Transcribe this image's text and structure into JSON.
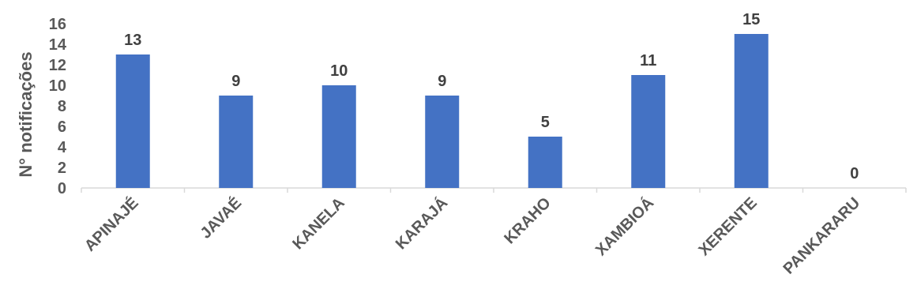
{
  "chart_data": {
    "type": "bar",
    "title": "",
    "xlabel": "",
    "ylabel": "N° notificações",
    "categories": [
      "APINAJÉ",
      "JAVAÉ",
      "KANELA",
      "KARAJÁ",
      "KRAHO",
      "XAMBIOÁ",
      "XERENTE",
      "PANKARARU"
    ],
    "values": [
      13,
      9,
      10,
      9,
      5,
      11,
      15,
      0
    ],
    "yticks": [
      0,
      2,
      4,
      6,
      8,
      10,
      12,
      14,
      16
    ],
    "ylim": [
      0,
      16
    ],
    "grid": false,
    "legend": "none",
    "bar_color": "#4472C4"
  }
}
